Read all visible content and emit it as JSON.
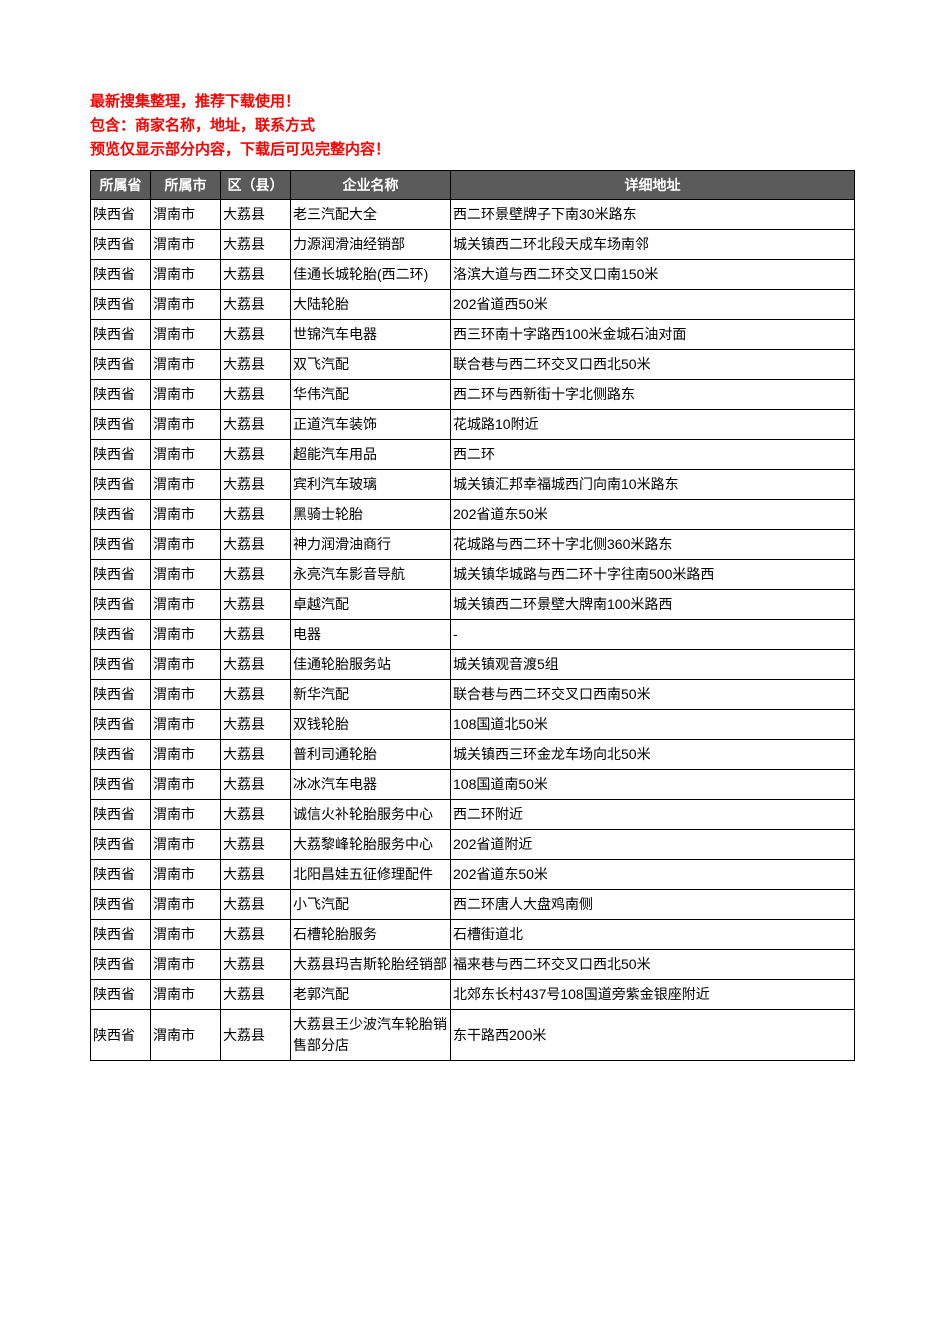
{
  "notice": {
    "line1": "最新搜集整理，推荐下载使用！",
    "line2": "包含：商家名称，地址，联系方式",
    "line3": "预览仅显示部分内容，下载后可见完整内容！"
  },
  "table": {
    "columns": [
      {
        "key": "province",
        "label": "所属省",
        "class": "col-province"
      },
      {
        "key": "city",
        "label": "所属市",
        "class": "col-city"
      },
      {
        "key": "district",
        "label": "区（县）",
        "class": "col-district"
      },
      {
        "key": "company",
        "label": "企业名称",
        "class": "col-company"
      },
      {
        "key": "address",
        "label": "详细地址",
        "class": "col-address"
      }
    ],
    "rows": [
      [
        "陕西省",
        "渭南市",
        "大荔县",
        "老三汽配大全",
        "西二环景壁牌子下南30米路东"
      ],
      [
        "陕西省",
        "渭南市",
        "大荔县",
        "力源润滑油经销部",
        "城关镇西二环北段天成车场南邻"
      ],
      [
        "陕西省",
        "渭南市",
        "大荔县",
        "佳通长城轮胎(西二环)",
        "洛滨大道与西二环交叉口南150米"
      ],
      [
        "陕西省",
        "渭南市",
        "大荔县",
        "大陆轮胎",
        "202省道西50米"
      ],
      [
        "陕西省",
        "渭南市",
        "大荔县",
        "世锦汽车电器",
        "西三环南十字路西100米金城石油对面"
      ],
      [
        "陕西省",
        "渭南市",
        "大荔县",
        "双飞汽配",
        "联合巷与西二环交叉口西北50米"
      ],
      [
        "陕西省",
        "渭南市",
        "大荔县",
        "华伟汽配",
        "西二环与西新街十字北侧路东"
      ],
      [
        "陕西省",
        "渭南市",
        "大荔县",
        "正道汽车装饰",
        "花城路10附近"
      ],
      [
        "陕西省",
        "渭南市",
        "大荔县",
        "超能汽车用品",
        "西二环"
      ],
      [
        "陕西省",
        "渭南市",
        "大荔县",
        "宾利汽车玻璃",
        "城关镇汇邦幸福城西门向南10米路东"
      ],
      [
        "陕西省",
        "渭南市",
        "大荔县",
        "黑骑士轮胎",
        "202省道东50米"
      ],
      [
        "陕西省",
        "渭南市",
        "大荔县",
        "神力润滑油商行",
        "花城路与西二环十字北侧360米路东"
      ],
      [
        "陕西省",
        "渭南市",
        "大荔县",
        "永亮汽车影音导航",
        "城关镇华城路与西二环十字往南500米路西"
      ],
      [
        "陕西省",
        "渭南市",
        "大荔县",
        "卓越汽配",
        "城关镇西二环景壁大牌南100米路西"
      ],
      [
        "陕西省",
        "渭南市",
        "大荔县",
        "电器",
        "-"
      ],
      [
        "陕西省",
        "渭南市",
        "大荔县",
        "佳通轮胎服务站",
        "城关镇观音渡5组"
      ],
      [
        "陕西省",
        "渭南市",
        "大荔县",
        "新华汽配",
        "联合巷与西二环交叉口西南50米"
      ],
      [
        "陕西省",
        "渭南市",
        "大荔县",
        "双钱轮胎",
        "108国道北50米"
      ],
      [
        "陕西省",
        "渭南市",
        "大荔县",
        "普利司通轮胎",
        "城关镇西三环金龙车场向北50米"
      ],
      [
        "陕西省",
        "渭南市",
        "大荔县",
        "冰冰汽车电器",
        "108国道南50米"
      ],
      [
        "陕西省",
        "渭南市",
        "大荔县",
        "诚信火补轮胎服务中心",
        "西二环附近"
      ],
      [
        "陕西省",
        "渭南市",
        "大荔县",
        "大荔黎峰轮胎服务中心",
        "202省道附近"
      ],
      [
        "陕西省",
        "渭南市",
        "大荔县",
        "北阳昌娃五征修理配件",
        "202省道东50米"
      ],
      [
        "陕西省",
        "渭南市",
        "大荔县",
        "小飞汽配",
        "西二环唐人大盘鸡南侧"
      ],
      [
        "陕西省",
        "渭南市",
        "大荔县",
        "石槽轮胎服务",
        "石槽街道北"
      ],
      [
        "陕西省",
        "渭南市",
        "大荔县",
        "大荔县玛吉斯轮胎经销部",
        "福来巷与西二环交叉口西北50米"
      ],
      [
        "陕西省",
        "渭南市",
        "大荔县",
        "老郭汽配",
        "北郊东长村437号108国道旁紫金银座附近"
      ],
      [
        "陕西省",
        "渭南市",
        "大荔县",
        "大荔县王少波汽车轮胎销售部分店",
        "东干路西200米"
      ]
    ]
  },
  "styling": {
    "header_bg": "#5b5b5b",
    "header_text": "#ffffff",
    "notice_color": "#ff0000",
    "border_color": "#000000",
    "cell_text": "#000000",
    "body_bg": "#ffffff",
    "font_size_notice": 15,
    "font_size_cell": 14
  }
}
